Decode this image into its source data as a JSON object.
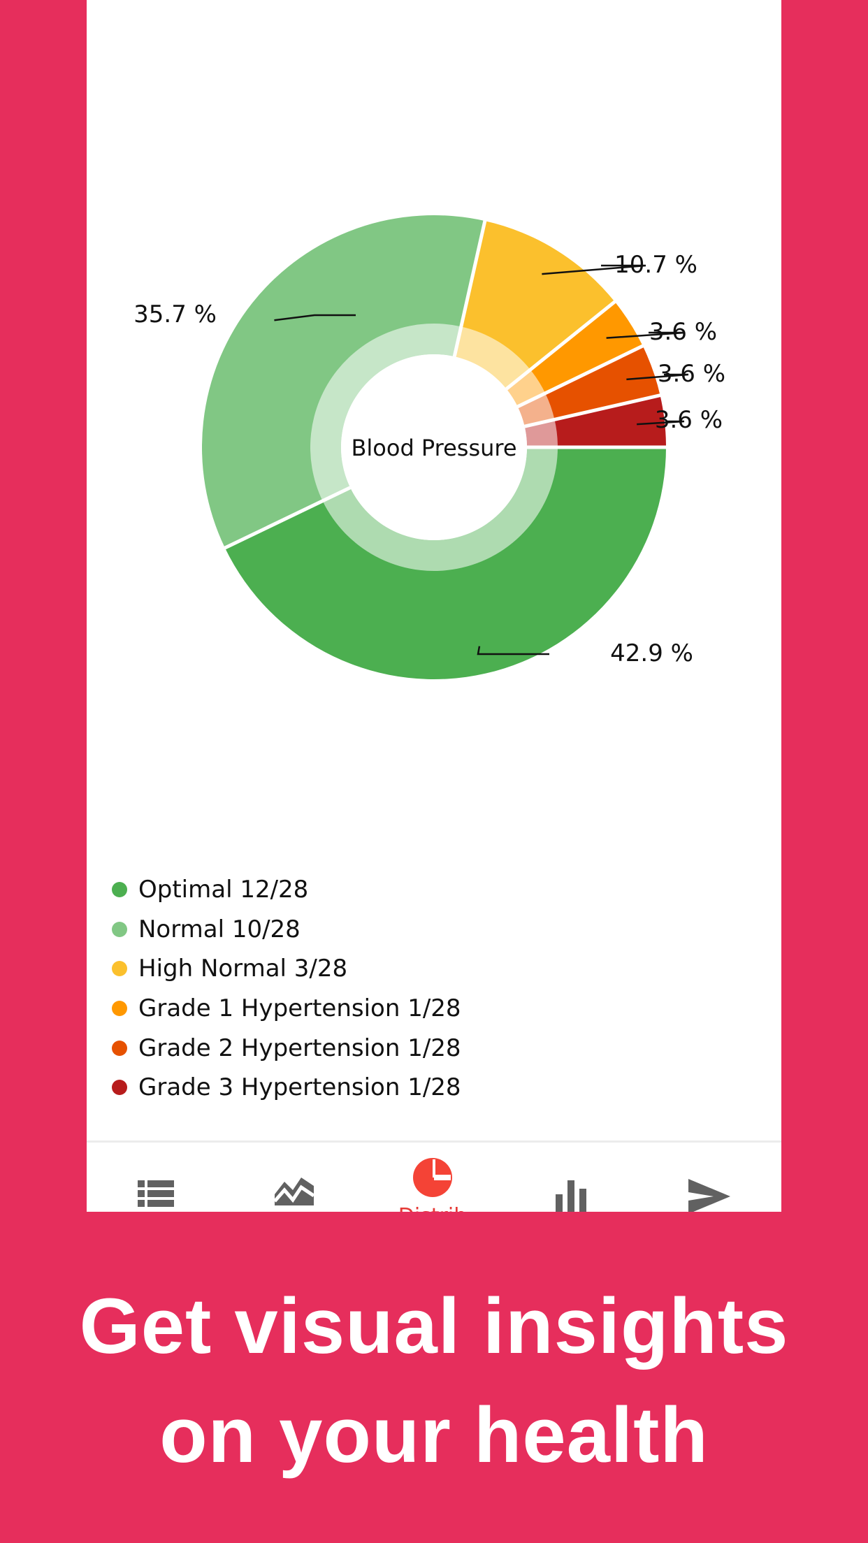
{
  "chart_data": {
    "type": "pie",
    "title": "Blood Pressure",
    "slices": [
      {
        "label": "Optimal",
        "count": 12,
        "total": 28,
        "percent": 42.9,
        "percent_label": "42.9 %",
        "color": "#4caf50"
      },
      {
        "label": "Normal",
        "count": 10,
        "total": 28,
        "percent": 35.7,
        "percent_label": "35.7 %",
        "color": "#81c784"
      },
      {
        "label": "High Normal",
        "count": 3,
        "total": 28,
        "percent": 10.7,
        "percent_label": "10.7 %",
        "color": "#fbc02d"
      },
      {
        "label": "Grade 1 Hypertension",
        "count": 1,
        "total": 28,
        "percent": 3.6,
        "percent_label": "3.6 %",
        "color": "#ff9800"
      },
      {
        "label": "Grade 2 Hypertension",
        "count": 1,
        "total": 28,
        "percent": 3.6,
        "percent_label": "3.6 %",
        "color": "#e65100"
      },
      {
        "label": "Grade 3 Hypertension",
        "count": 1,
        "total": 28,
        "percent": 3.6,
        "percent_label": "3.6 %",
        "color": "#b71c1c"
      }
    ],
    "legend": [
      "Optimal 12/28",
      "Normal 10/28",
      "High Normal 3/28",
      "Grade 1 Hypertension 1/28",
      "Grade 2 Hypertension 1/28",
      "Grade 3 Hypertension 1/28"
    ]
  },
  "nav": {
    "items": [
      {
        "icon": "list-icon",
        "active": false
      },
      {
        "icon": "line-chart-icon",
        "active": false
      },
      {
        "icon": "pie-chart-icon",
        "active": true,
        "label": "Distrib"
      },
      {
        "icon": "bar-chart-icon",
        "active": false
      },
      {
        "icon": "send-icon",
        "active": false
      }
    ],
    "active_color": "#f44336",
    "inactive_color": "#616161"
  },
  "headline": {
    "line1": "Get visual insights",
    "line2": "on your health"
  },
  "colors": {
    "background": "#e62e5c",
    "card": "#ffffff"
  }
}
